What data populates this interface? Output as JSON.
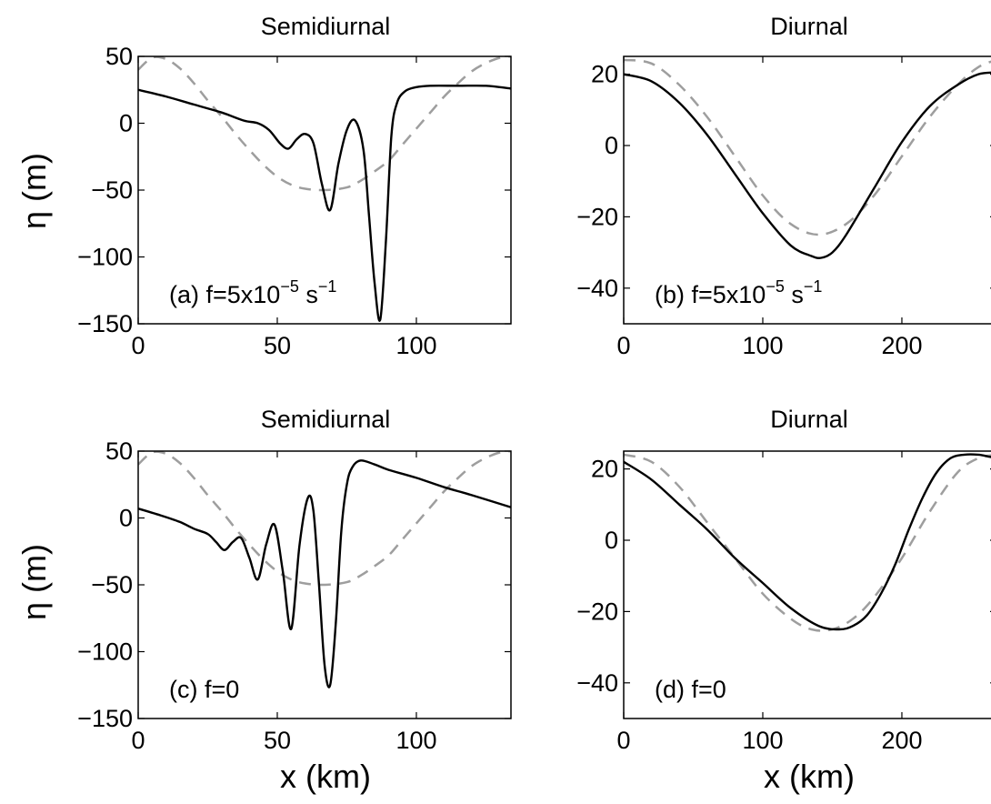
{
  "chart_data": [
    {
      "type": "line",
      "title": "Semidiurnal",
      "xlabel": "",
      "ylabel": "η (m)",
      "xlim": [
        0,
        134
      ],
      "ylim": [
        -150,
        50
      ],
      "xticks": [
        "0",
        "50",
        "100"
      ],
      "yticks": [
        "50",
        "0",
        "−50",
        "−100",
        "−150"
      ],
      "annotation": {
        "prefix": "(a) f=5x10",
        "exp1": "−5",
        "unit": " s",
        "exp2": "−1"
      },
      "series": [
        {
          "style": "solid",
          "color": "#000000",
          "x": [
            0,
            10,
            20,
            30,
            38,
            43,
            47,
            51,
            54,
            57,
            60,
            63,
            66,
            69,
            72,
            75,
            78,
            81,
            83,
            85,
            87,
            89,
            91,
            93,
            96,
            100,
            105,
            115,
            125,
            134
          ],
          "y": [
            25,
            20,
            14,
            8,
            2,
            0,
            -5,
            -15,
            -19,
            -12,
            -8,
            -15,
            -45,
            -65,
            -30,
            -5,
            2,
            -20,
            -70,
            -120,
            -147,
            -90,
            -10,
            15,
            24,
            27,
            28,
            28,
            28,
            26
          ]
        },
        {
          "style": "dashed",
          "color": "#9e9e9e",
          "x": [
            0,
            5,
            10,
            15,
            20,
            25,
            30,
            35,
            40,
            45,
            50,
            55,
            60,
            67,
            75,
            80,
            85,
            90,
            95,
            100,
            105,
            110,
            115,
            120,
            125,
            130,
            134
          ],
          "y": [
            40,
            49,
            48,
            41,
            30,
            17,
            5,
            -8,
            -20,
            -31,
            -40,
            -46,
            -49,
            -50,
            -48,
            -43,
            -36,
            -28,
            -16,
            -4,
            8,
            20,
            30,
            39,
            45,
            49,
            50
          ]
        }
      ]
    },
    {
      "type": "line",
      "title": "Diurnal",
      "xlabel": "",
      "ylabel": "",
      "xlim": [
        0,
        268
      ],
      "ylim": [
        -50,
        25
      ],
      "xticks": [
        "0",
        "100",
        "200"
      ],
      "yticks": [
        "20",
        "0",
        "−20",
        "−40"
      ],
      "annotation": {
        "prefix": "(b) f=5x10",
        "exp1": "−5",
        "unit": " s",
        "exp2": "−1"
      },
      "series": [
        {
          "style": "solid",
          "color": "#000000",
          "x": [
            0,
            20,
            40,
            60,
            80,
            100,
            120,
            135,
            142,
            150,
            160,
            180,
            200,
            220,
            240,
            255,
            268
          ],
          "y": [
            20,
            18,
            12,
            3,
            -8,
            -19,
            -28,
            -31,
            -31.5,
            -30,
            -25,
            -12,
            1,
            11,
            17,
            20,
            20.5
          ]
        },
        {
          "style": "dashed",
          "color": "#9e9e9e",
          "x": [
            0,
            20,
            40,
            60,
            80,
            100,
            120,
            140,
            160,
            180,
            200,
            220,
            240,
            255,
            268
          ],
          "y": [
            24,
            23,
            17,
            8,
            -3,
            -14,
            -22,
            -25,
            -22,
            -14,
            -3,
            8,
            17,
            22,
            24
          ]
        }
      ]
    },
    {
      "type": "line",
      "title": "Semidiurnal",
      "xlabel": "x (km)",
      "ylabel": "η (m)",
      "xlim": [
        0,
        134
      ],
      "ylim": [
        -150,
        50
      ],
      "xticks": [
        "0",
        "50",
        "100"
      ],
      "yticks": [
        "50",
        "0",
        "−50",
        "−100",
        "−150"
      ],
      "annotation": {
        "prefix": "(c) f=0",
        "exp1": "",
        "unit": "",
        "exp2": ""
      },
      "series": [
        {
          "style": "solid",
          "color": "#000000",
          "x": [
            0,
            8,
            15,
            20,
            25,
            28,
            31,
            34,
            37,
            40,
            43,
            46,
            49,
            52,
            55,
            58,
            61,
            63,
            65,
            67,
            69,
            71,
            73,
            75,
            77,
            80,
            85,
            90,
            100,
            110,
            120,
            134
          ],
          "y": [
            7,
            2,
            -3,
            -8,
            -12,
            -18,
            -24,
            -18,
            -15,
            -30,
            -46,
            -20,
            -5,
            -40,
            -83,
            -20,
            15,
            5,
            -50,
            -110,
            -125,
            -80,
            -10,
            25,
            38,
            43,
            40,
            36,
            30,
            23,
            17,
            8
          ]
        },
        {
          "style": "dashed",
          "color": "#9e9e9e",
          "x": [
            0,
            5,
            10,
            15,
            20,
            25,
            30,
            35,
            40,
            45,
            50,
            55,
            60,
            67,
            75,
            80,
            85,
            90,
            95,
            100,
            105,
            110,
            115,
            120,
            125,
            130,
            134
          ],
          "y": [
            40,
            49,
            48,
            41,
            30,
            17,
            5,
            -8,
            -20,
            -31,
            -40,
            -46,
            -49,
            -50,
            -48,
            -43,
            -36,
            -28,
            -16,
            -4,
            8,
            20,
            30,
            39,
            45,
            49,
            50
          ]
        }
      ]
    },
    {
      "type": "line",
      "title": "Diurnal",
      "xlabel": "x (km)",
      "ylabel": "",
      "xlim": [
        0,
        268
      ],
      "ylim": [
        -50,
        25
      ],
      "xticks": [
        "0",
        "100",
        "200"
      ],
      "yticks": [
        "20",
        "0",
        "−20",
        "−40"
      ],
      "annotation": {
        "prefix": "(d) f=0",
        "exp1": "",
        "unit": "",
        "exp2": ""
      },
      "series": [
        {
          "style": "solid",
          "color": "#000000",
          "x": [
            0,
            20,
            40,
            60,
            80,
            100,
            120,
            140,
            155,
            165,
            175,
            185,
            195,
            205,
            215,
            225,
            235,
            245,
            255,
            262,
            268
          ],
          "y": [
            22,
            17,
            10,
            3,
            -5,
            -12,
            -19,
            -24,
            -25,
            -24,
            -21,
            -15,
            -7,
            3,
            12,
            19,
            23,
            24,
            24,
            23.5,
            23
          ]
        },
        {
          "style": "dashed",
          "color": "#9e9e9e",
          "x": [
            0,
            20,
            40,
            60,
            80,
            100,
            120,
            135,
            150,
            165,
            180,
            200,
            220,
            240,
            255,
            268
          ],
          "y": [
            24,
            22,
            15,
            5,
            -5,
            -15,
            -22,
            -25,
            -25,
            -22,
            -16,
            -5,
            8,
            19,
            23,
            24
          ]
        }
      ]
    }
  ]
}
